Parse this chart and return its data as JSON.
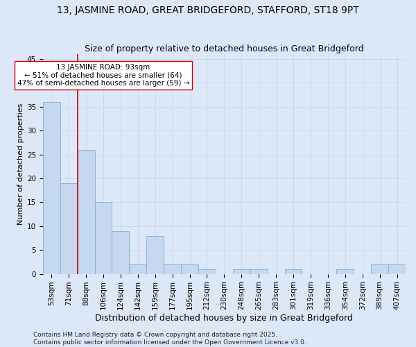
{
  "title": "13, JASMINE ROAD, GREAT BRIDGEFORD, STAFFORD, ST18 9PT",
  "subtitle": "Size of property relative to detached houses in Great Bridgeford",
  "xlabel": "Distribution of detached houses by size in Great Bridgeford",
  "ylabel": "Number of detached properties",
  "bin_labels": [
    "53sqm",
    "71sqm",
    "88sqm",
    "106sqm",
    "124sqm",
    "142sqm",
    "159sqm",
    "177sqm",
    "195sqm",
    "212sqm",
    "230sqm",
    "248sqm",
    "265sqm",
    "283sqm",
    "301sqm",
    "319sqm",
    "336sqm",
    "354sqm",
    "372sqm",
    "389sqm",
    "407sqm"
  ],
  "bar_values": [
    36,
    19,
    26,
    15,
    9,
    2,
    8,
    2,
    2,
    1,
    0,
    1,
    1,
    0,
    1,
    0,
    0,
    1,
    0,
    2,
    2
  ],
  "bar_color": "#c5d8f0",
  "bar_edge_color": "#7aafd4",
  "grid_color": "#c8d8ec",
  "background_color": "#dce8f8",
  "vline_color": "#cc0000",
  "vline_position": 2.5,
  "annotation_text": "13 JASMINE ROAD: 93sqm\n← 51% of detached houses are smaller (64)\n47% of semi-detached houses are larger (59) →",
  "annotation_box_facecolor": "#ffffff",
  "annotation_box_edgecolor": "#cc0000",
  "ylim": [
    0,
    46
  ],
  "yticks": [
    0,
    5,
    10,
    15,
    20,
    25,
    30,
    35,
    40,
    45
  ],
  "footer_text": "Contains HM Land Registry data © Crown copyright and database right 2025.\nContains public sector information licensed under the Open Government Licence v3.0.",
  "title_fontsize": 10,
  "subtitle_fontsize": 9,
  "xlabel_fontsize": 9,
  "ylabel_fontsize": 8,
  "tick_fontsize": 7.5,
  "annotation_fontsize": 7.5,
  "footer_fontsize": 6.5
}
